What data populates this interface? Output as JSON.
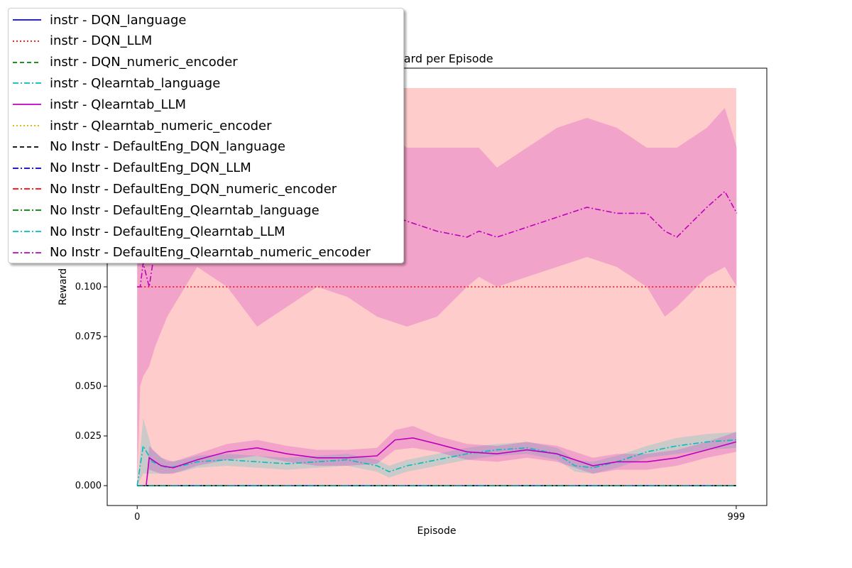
{
  "chart_data": {
    "type": "line",
    "title": "Reward per Episode",
    "xlabel": "Episode",
    "ylabel": "Reward",
    "xlim": [
      -50,
      1050
    ],
    "ylim": [
      -0.01,
      0.21
    ],
    "xticks": [
      0,
      999
    ],
    "xtick_labels": [
      "0",
      "999"
    ],
    "yticks": [
      0.0,
      0.025,
      0.05,
      0.075,
      0.1
    ],
    "ytick_labels": [
      "0.000",
      "0.025",
      "0.050",
      "0.075",
      "0.100"
    ],
    "grid": false,
    "legend_position": "top-left",
    "series": [
      {
        "name": "instr - DQN_language",
        "color": "#0000ff",
        "dash": "solid",
        "x": [
          0,
          999
        ],
        "y": [
          0.0,
          0.0
        ]
      },
      {
        "name": "instr - DQN_LLM",
        "color": "#ff0000",
        "dash": "dotted",
        "x": [
          0,
          999
        ],
        "y": [
          0.1,
          0.1
        ],
        "band": {
          "x": [
            0,
            999
          ],
          "lower": [
            0.0,
            0.0
          ],
          "upper": [
            0.2,
            0.2
          ]
        }
      },
      {
        "name": "instr - DQN_numeric_encoder",
        "color": "#008000",
        "dash": "dashed",
        "x": [
          0,
          999
        ],
        "y": [
          0.0,
          0.0
        ]
      },
      {
        "name": "instr - Qlearntab_language",
        "color": "#00bfbf",
        "dash": "dashdot",
        "x": [
          0,
          10,
          25,
          50,
          75,
          100,
          150,
          200,
          250,
          300,
          350,
          400,
          420,
          450,
          500,
          550,
          600,
          650,
          700,
          730,
          760,
          800,
          850,
          900,
          950,
          999
        ],
        "y": [
          0.0,
          0.02,
          0.012,
          0.009,
          0.01,
          0.012,
          0.013,
          0.012,
          0.011,
          0.012,
          0.013,
          0.01,
          0.007,
          0.01,
          0.013,
          0.016,
          0.018,
          0.019,
          0.016,
          0.01,
          0.009,
          0.012,
          0.017,
          0.02,
          0.022,
          0.023
        ],
        "band": {
          "x": [
            0,
            10,
            25,
            50,
            75,
            100,
            150,
            200,
            250,
            300,
            350,
            400,
            420,
            450,
            500,
            550,
            600,
            650,
            700,
            730,
            760,
            800,
            850,
            900,
            950,
            999
          ],
          "lower": [
            0.0,
            0.006,
            0.006,
            0.006,
            0.007,
            0.009,
            0.01,
            0.009,
            0.008,
            0.009,
            0.01,
            0.007,
            0.004,
            0.007,
            0.01,
            0.013,
            0.015,
            0.016,
            0.013,
            0.007,
            0.006,
            0.009,
            0.014,
            0.016,
            0.018,
            0.019
          ],
          "upper": [
            0.0,
            0.034,
            0.018,
            0.012,
            0.013,
            0.015,
            0.016,
            0.015,
            0.014,
            0.015,
            0.016,
            0.013,
            0.01,
            0.013,
            0.016,
            0.019,
            0.021,
            0.022,
            0.019,
            0.013,
            0.012,
            0.015,
            0.02,
            0.024,
            0.026,
            0.027
          ]
        }
      },
      {
        "name": "instr - Qlearntab_LLM",
        "color": "#bf00bf",
        "dash": "solid",
        "x": [
          0,
          15,
          20,
          40,
          60,
          100,
          150,
          200,
          250,
          300,
          350,
          400,
          430,
          460,
          500,
          550,
          600,
          650,
          700,
          730,
          760,
          800,
          850,
          900,
          950,
          999
        ],
        "y": [
          0.0,
          0.0,
          0.014,
          0.01,
          0.009,
          0.013,
          0.017,
          0.019,
          0.016,
          0.014,
          0.014,
          0.015,
          0.023,
          0.024,
          0.021,
          0.017,
          0.016,
          0.018,
          0.016,
          0.013,
          0.01,
          0.012,
          0.012,
          0.014,
          0.018,
          0.022
        ],
        "band": {
          "x": [
            0,
            15,
            20,
            40,
            60,
            100,
            150,
            200,
            250,
            300,
            350,
            400,
            430,
            460,
            500,
            550,
            600,
            650,
            700,
            730,
            760,
            800,
            850,
            900,
            950,
            999
          ],
          "lower": [
            0.0,
            0.0,
            0.008,
            0.006,
            0.006,
            0.01,
            0.013,
            0.015,
            0.012,
            0.01,
            0.01,
            0.011,
            0.018,
            0.019,
            0.017,
            0.013,
            0.012,
            0.014,
            0.012,
            0.009,
            0.006,
            0.008,
            0.008,
            0.01,
            0.014,
            0.017
          ],
          "upper": [
            0.0,
            0.0,
            0.02,
            0.014,
            0.012,
            0.016,
            0.021,
            0.023,
            0.02,
            0.018,
            0.018,
            0.019,
            0.028,
            0.03,
            0.025,
            0.021,
            0.02,
            0.022,
            0.02,
            0.017,
            0.014,
            0.016,
            0.016,
            0.018,
            0.022,
            0.027
          ]
        }
      },
      {
        "name": "instr - Qlearntab_numeric_encoder",
        "color": "#d4b000",
        "dash": "dotted",
        "x": [
          0,
          999
        ],
        "y": [
          0.0,
          0.0
        ]
      },
      {
        "name": "No Instr - DefaultEng_DQN_language",
        "color": "#000000",
        "dash": "dashed",
        "x": [
          0,
          999
        ],
        "y": [
          0.0,
          0.0
        ]
      },
      {
        "name": "No Instr - DefaultEng_DQN_LLM",
        "color": "#0000bf",
        "dash": "dashdot",
        "x": [
          0,
          999
        ],
        "y": [
          0.0,
          0.0
        ]
      },
      {
        "name": "No Instr - DefaultEng_DQN_numeric_encoder",
        "color": "#ff0000",
        "dash": "dashdot",
        "x": [
          0,
          999
        ],
        "y": [
          0.0,
          0.0
        ]
      },
      {
        "name": "No Instr - DefaultEng_Qlearntab_language",
        "color": "#008000",
        "dash": "dashdot",
        "x": [
          0,
          999
        ],
        "y": [
          0.0,
          0.0
        ]
      },
      {
        "name": "No Instr - DefaultEng_Qlearntab_LLM",
        "color": "#00bfbf",
        "dash": "dashdot",
        "x": [
          0,
          999
        ],
        "y": [
          0.0,
          0.0
        ]
      },
      {
        "name": "No Instr - DefaultEng_Qlearntab_numeric_encoder",
        "color": "#bf00bf",
        "dash": "dashdot",
        "x": [
          0,
          5,
          10,
          20,
          30,
          50,
          100,
          150,
          200,
          250,
          300,
          350,
          400,
          450,
          500,
          550,
          570,
          600,
          650,
          700,
          750,
          800,
          850,
          880,
          900,
          950,
          980,
          1000
        ],
        "y": [
          0.1,
          0.1,
          0.112,
          0.1,
          0.12,
          0.125,
          0.13,
          0.135,
          0.14,
          0.135,
          0.13,
          0.135,
          0.138,
          0.133,
          0.128,
          0.125,
          0.128,
          0.125,
          0.13,
          0.135,
          0.14,
          0.137,
          0.137,
          0.128,
          0.125,
          0.14,
          0.148,
          0.137
        ],
        "band": {
          "x": [
            0,
            5,
            10,
            20,
            30,
            50,
            100,
            150,
            200,
            250,
            300,
            350,
            400,
            450,
            500,
            550,
            570,
            600,
            650,
            700,
            750,
            800,
            850,
            880,
            900,
            950,
            980,
            1000
          ],
          "lower": [
            0.0,
            0.05,
            0.055,
            0.06,
            0.07,
            0.085,
            0.11,
            0.1,
            0.08,
            0.09,
            0.1,
            0.095,
            0.085,
            0.08,
            0.085,
            0.1,
            0.105,
            0.1,
            0.105,
            0.11,
            0.115,
            0.11,
            0.1,
            0.085,
            0.09,
            0.105,
            0.11,
            0.1
          ],
          "upper": [
            0.15,
            0.15,
            0.16,
            0.17,
            0.17,
            0.17,
            0.17,
            0.17,
            0.18,
            0.18,
            0.17,
            0.17,
            0.18,
            0.17,
            0.17,
            0.17,
            0.17,
            0.16,
            0.17,
            0.18,
            0.185,
            0.18,
            0.17,
            0.17,
            0.17,
            0.18,
            0.19,
            0.17
          ]
        }
      }
    ]
  }
}
